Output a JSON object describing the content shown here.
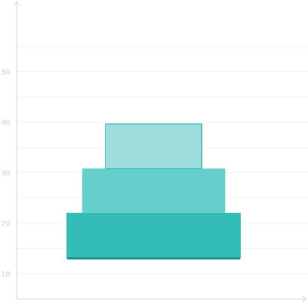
{
  "chart_data": {
    "type": "bar",
    "title": "",
    "xlabel": "",
    "ylabel": "",
    "grid": true,
    "legend": "none",
    "ylim": [
      5,
      60
    ],
    "y_ticks": [
      10,
      20,
      30,
      40,
      50
    ],
    "y_tick_labels": [
      "10",
      "20",
      "30",
      "40",
      "50"
    ],
    "baseline_value": 13,
    "baseline_color": "#0f8f8a",
    "layers": [
      {
        "bottom": 13,
        "top": 22,
        "relative_width": 0.78,
        "color": "#34bcb9"
      },
      {
        "bottom": 22,
        "top": 30.8,
        "relative_width": 0.64,
        "color": "#66cfcb"
      },
      {
        "bottom": 30.8,
        "top": 39.6,
        "relative_width": 0.43,
        "color": "#9fdedd",
        "stroke": "#45bfba"
      }
    ]
  }
}
